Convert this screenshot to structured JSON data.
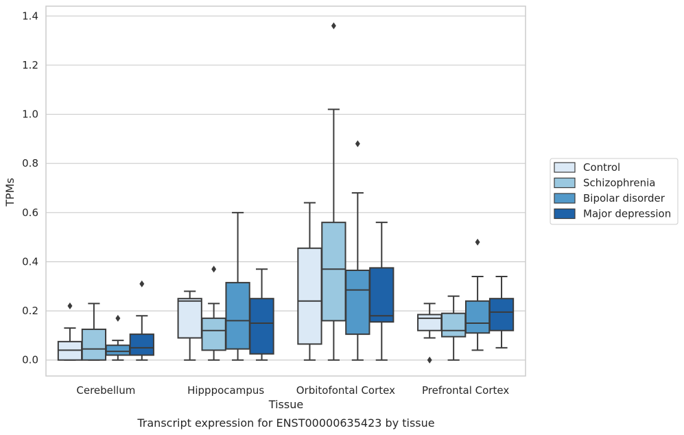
{
  "chart_data": {
    "type": "boxplot",
    "title": "",
    "caption": "Transcript expression for ENST00000635423 by tissue",
    "xlabel": "Tissue",
    "ylabel": "TPMs",
    "ylim": [
      -0.065,
      1.44
    ],
    "yticks": [
      0.0,
      0.2,
      0.4,
      0.6,
      0.8,
      1.0,
      1.2,
      1.4
    ],
    "ytick_labels": [
      "0.0",
      "0.2",
      "0.4",
      "0.6",
      "0.8",
      "1.0",
      "1.2",
      "1.4"
    ],
    "grid": true,
    "legend_position": "right",
    "categories": [
      "Cerebellum",
      "Hipppocampus",
      "Orbitofontal Cortex",
      "Prefrontal Cortex"
    ],
    "series": [
      {
        "name": "Control",
        "color": "#dbe9f6",
        "boxes": [
          {
            "whislo": 0.0,
            "q1": 0.0,
            "med": 0.04,
            "q3": 0.075,
            "whishi": 0.13,
            "fliers": [
              0.22
            ]
          },
          {
            "whislo": 0.0,
            "q1": 0.09,
            "med": 0.24,
            "q3": 0.25,
            "whishi": 0.28,
            "fliers": []
          },
          {
            "whislo": 0.0,
            "q1": 0.065,
            "med": 0.24,
            "q3": 0.455,
            "whishi": 0.64,
            "fliers": []
          },
          {
            "whislo": 0.09,
            "q1": 0.12,
            "med": 0.17,
            "q3": 0.185,
            "whishi": 0.23,
            "fliers": [
              0.0
            ]
          }
        ]
      },
      {
        "name": "Schizophrenia",
        "color": "#9ac8e0",
        "boxes": [
          {
            "whislo": 0.0,
            "q1": 0.0,
            "med": 0.045,
            "q3": 0.125,
            "whishi": 0.23,
            "fliers": []
          },
          {
            "whislo": 0.0,
            "q1": 0.04,
            "med": 0.12,
            "q3": 0.17,
            "whishi": 0.23,
            "fliers": [
              0.37
            ]
          },
          {
            "whislo": 0.0,
            "q1": 0.16,
            "med": 0.37,
            "q3": 0.56,
            "whishi": 1.02,
            "fliers": [
              1.36
            ]
          },
          {
            "whislo": 0.0,
            "q1": 0.095,
            "med": 0.12,
            "q3": 0.19,
            "whishi": 0.26,
            "fliers": []
          }
        ]
      },
      {
        "name": "Bipolar disorder",
        "color": "#5299c9",
        "boxes": [
          {
            "whislo": 0.0,
            "q1": 0.02,
            "med": 0.035,
            "q3": 0.06,
            "whishi": 0.08,
            "fliers": [
              0.17
            ]
          },
          {
            "whislo": 0.0,
            "q1": 0.045,
            "med": 0.16,
            "q3": 0.315,
            "whishi": 0.6,
            "fliers": []
          },
          {
            "whislo": 0.0,
            "q1": 0.105,
            "med": 0.285,
            "q3": 0.365,
            "whishi": 0.68,
            "fliers": [
              0.88
            ]
          },
          {
            "whislo": 0.04,
            "q1": 0.11,
            "med": 0.15,
            "q3": 0.24,
            "whishi": 0.34,
            "fliers": [
              0.48
            ]
          }
        ]
      },
      {
        "name": "Major depression",
        "color": "#1e62a8",
        "boxes": [
          {
            "whislo": 0.0,
            "q1": 0.02,
            "med": 0.05,
            "q3": 0.105,
            "whishi": 0.18,
            "fliers": [
              0.31
            ]
          },
          {
            "whislo": 0.0,
            "q1": 0.025,
            "med": 0.15,
            "q3": 0.25,
            "whishi": 0.37,
            "fliers": []
          },
          {
            "whislo": 0.0,
            "q1": 0.155,
            "med": 0.18,
            "q3": 0.375,
            "whishi": 0.56,
            "fliers": []
          },
          {
            "whislo": 0.05,
            "q1": 0.12,
            "med": 0.195,
            "q3": 0.25,
            "whishi": 0.34,
            "fliers": []
          }
        ]
      }
    ]
  },
  "colors": {
    "grid": "#cccccc",
    "frame": "#cccccc",
    "line": "#3b3b3b",
    "flier": "#3b3b3b",
    "text": "#262626"
  }
}
